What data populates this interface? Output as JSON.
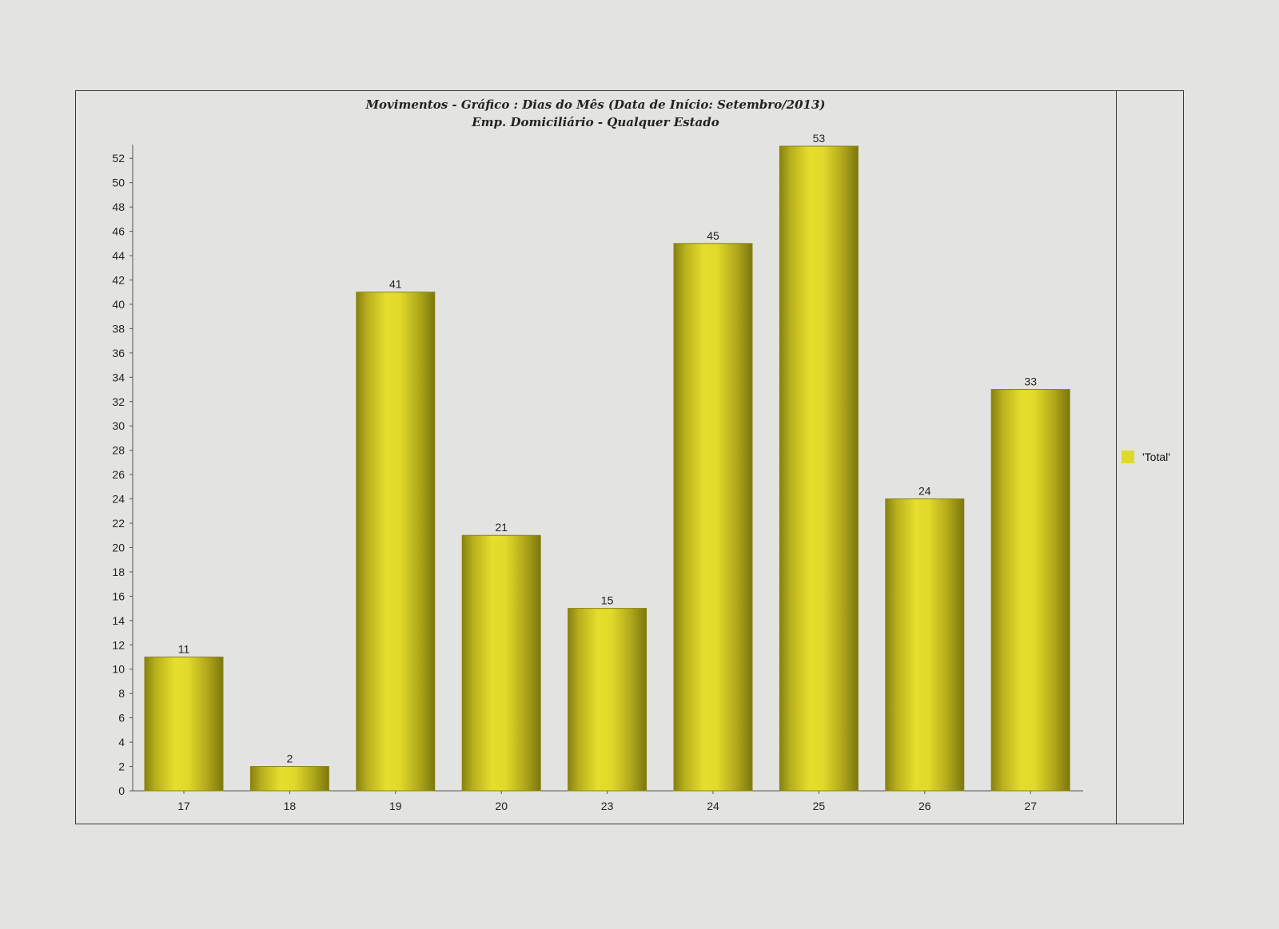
{
  "chart_data": {
    "type": "bar",
    "title": "Movimentos - Gráfico : Dias do Mês (Data de Início: Setembro/2013)",
    "subtitle": "Emp. Domiciliário - Qualquer Estado",
    "categories": [
      "17",
      "18",
      "19",
      "20",
      "23",
      "24",
      "25",
      "26",
      "27"
    ],
    "series": [
      {
        "name": "'Total'",
        "values": [
          11,
          2,
          41,
          21,
          15,
          45,
          53,
          24,
          33
        ]
      }
    ],
    "xlabel": "",
    "ylabel": "",
    "ylim": [
      0,
      53
    ],
    "yticks": [
      0,
      2,
      4,
      6,
      8,
      10,
      12,
      14,
      16,
      18,
      20,
      22,
      24,
      26,
      28,
      30,
      32,
      34,
      36,
      38,
      40,
      42,
      44,
      46,
      48,
      50,
      52
    ],
    "data_labels": true,
    "grid": false,
    "legend_position": "right",
    "bar_color": "#e0d82a",
    "bar_edge_color": "#8a8410"
  }
}
